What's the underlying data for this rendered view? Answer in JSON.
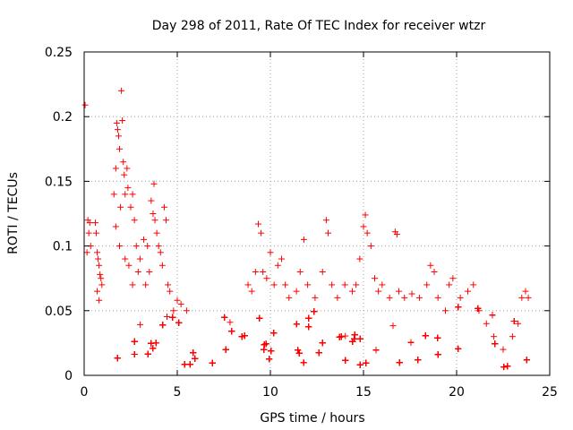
{
  "chart_data": {
    "type": "scatter",
    "title": "Day 298 of 2011, Rate Of TEC Index for receiver wtzr",
    "xlabel": "GPS time / hours",
    "ylabel": "ROTI / TECUs",
    "xlim": [
      0,
      25
    ],
    "ylim": [
      0,
      0.25
    ],
    "x_ticks": [
      0,
      5,
      10,
      15,
      20,
      25
    ],
    "x_tick_labels": [
      "0",
      "5",
      "10",
      "15",
      "20",
      "25"
    ],
    "y_ticks": [
      0,
      0.05,
      0.1,
      0.15,
      0.2,
      0.25
    ],
    "y_tick_labels": [
      "0",
      "0.05",
      "0.1",
      "0.15",
      "0.2",
      "0.25"
    ],
    "grid": true,
    "marker": "+",
    "color": "#ff0000",
    "series": [
      {
        "name": "ROTI",
        "points": [
          [
            0.05,
            0.209
          ],
          [
            0.2,
            0.12
          ],
          [
            0.3,
            0.118
          ],
          [
            0.25,
            0.11
          ],
          [
            0.35,
            0.1
          ],
          [
            0.15,
            0.095
          ],
          [
            0.6,
            0.118
          ],
          [
            0.65,
            0.11
          ],
          [
            0.7,
            0.095
          ],
          [
            0.75,
            0.09
          ],
          [
            0.8,
            0.085
          ],
          [
            0.85,
            0.078
          ],
          [
            0.9,
            0.075
          ],
          [
            0.7,
            0.065
          ],
          [
            0.8,
            0.058
          ],
          [
            0.95,
            0.07
          ],
          [
            1.6,
            0.14
          ],
          [
            1.7,
            0.16
          ],
          [
            1.75,
            0.195
          ],
          [
            1.8,
            0.19
          ],
          [
            1.85,
            0.185
          ],
          [
            1.9,
            0.175
          ],
          [
            1.95,
            0.13
          ],
          [
            2.0,
            0.22
          ],
          [
            2.05,
            0.197
          ],
          [
            2.1,
            0.165
          ],
          [
            2.15,
            0.155
          ],
          [
            2.2,
            0.14
          ],
          [
            2.3,
            0.16
          ],
          [
            2.35,
            0.145
          ],
          [
            2.5,
            0.13
          ],
          [
            2.6,
            0.14
          ],
          [
            2.7,
            0.12
          ],
          [
            2.8,
            0.1
          ],
          [
            1.7,
            0.115
          ],
          [
            1.9,
            0.1
          ],
          [
            2.2,
            0.09
          ],
          [
            2.4,
            0.085
          ],
          [
            2.6,
            0.07
          ],
          [
            2.9,
            0.08
          ],
          [
            3.0,
            0.09
          ],
          [
            3.2,
            0.105
          ],
          [
            3.4,
            0.1
          ],
          [
            3.6,
            0.135
          ],
          [
            3.7,
            0.125
          ],
          [
            3.75,
            0.148
          ],
          [
            3.8,
            0.12
          ],
          [
            3.9,
            0.11
          ],
          [
            4.0,
            0.1
          ],
          [
            4.1,
            0.095
          ],
          [
            3.5,
            0.08
          ],
          [
            3.3,
            0.07
          ],
          [
            4.2,
            0.085
          ],
          [
            4.3,
            0.13
          ],
          [
            4.4,
            0.12
          ],
          [
            4.5,
            0.07
          ],
          [
            4.6,
            0.065
          ],
          [
            4.8,
            0.05
          ],
          [
            5.0,
            0.058
          ],
          [
            5.2,
            0.055
          ],
          [
            5.5,
            0.05
          ],
          [
            8.8,
            0.07
          ],
          [
            9.0,
            0.065
          ],
          [
            9.2,
            0.08
          ],
          [
            9.35,
            0.117
          ],
          [
            9.5,
            0.11
          ],
          [
            9.6,
            0.08
          ],
          [
            9.8,
            0.075
          ],
          [
            10.0,
            0.095
          ],
          [
            10.2,
            0.07
          ],
          [
            10.4,
            0.085
          ],
          [
            10.6,
            0.09
          ],
          [
            10.8,
            0.07
          ],
          [
            11.0,
            0.06
          ],
          [
            11.4,
            0.065
          ],
          [
            11.6,
            0.08
          ],
          [
            11.8,
            0.105
          ],
          [
            12.0,
            0.07
          ],
          [
            12.4,
            0.06
          ],
          [
            12.8,
            0.08
          ],
          [
            13.0,
            0.12
          ],
          [
            13.1,
            0.11
          ],
          [
            13.3,
            0.07
          ],
          [
            13.6,
            0.06
          ],
          [
            14.0,
            0.07
          ],
          [
            14.4,
            0.065
          ],
          [
            14.6,
            0.07
          ],
          [
            14.8,
            0.09
          ],
          [
            15.0,
            0.115
          ],
          [
            15.1,
            0.124
          ],
          [
            15.2,
            0.11
          ],
          [
            15.4,
            0.1
          ],
          [
            15.6,
            0.075
          ],
          [
            15.8,
            0.065
          ],
          [
            16.0,
            0.07
          ],
          [
            16.4,
            0.06
          ],
          [
            16.7,
            0.111
          ],
          [
            16.8,
            0.109
          ],
          [
            16.9,
            0.065
          ],
          [
            17.2,
            0.06
          ],
          [
            17.6,
            0.063
          ],
          [
            18.0,
            0.06
          ],
          [
            18.4,
            0.07
          ],
          [
            18.6,
            0.085
          ],
          [
            18.8,
            0.08
          ],
          [
            19.0,
            0.06
          ],
          [
            19.4,
            0.05
          ],
          [
            19.6,
            0.07
          ],
          [
            19.8,
            0.075
          ],
          [
            20.2,
            0.06
          ],
          [
            20.6,
            0.065
          ],
          [
            20.9,
            0.07
          ],
          [
            21.2,
            0.05
          ],
          [
            21.6,
            0.04
          ],
          [
            22.0,
            0.03
          ],
          [
            22.5,
            0.02
          ],
          [
            23.0,
            0.03
          ],
          [
            23.3,
            0.04
          ],
          [
            23.5,
            0.06
          ],
          [
            23.7,
            0.065
          ],
          [
            23.85,
            0.06
          ]
        ]
      }
    ]
  }
}
